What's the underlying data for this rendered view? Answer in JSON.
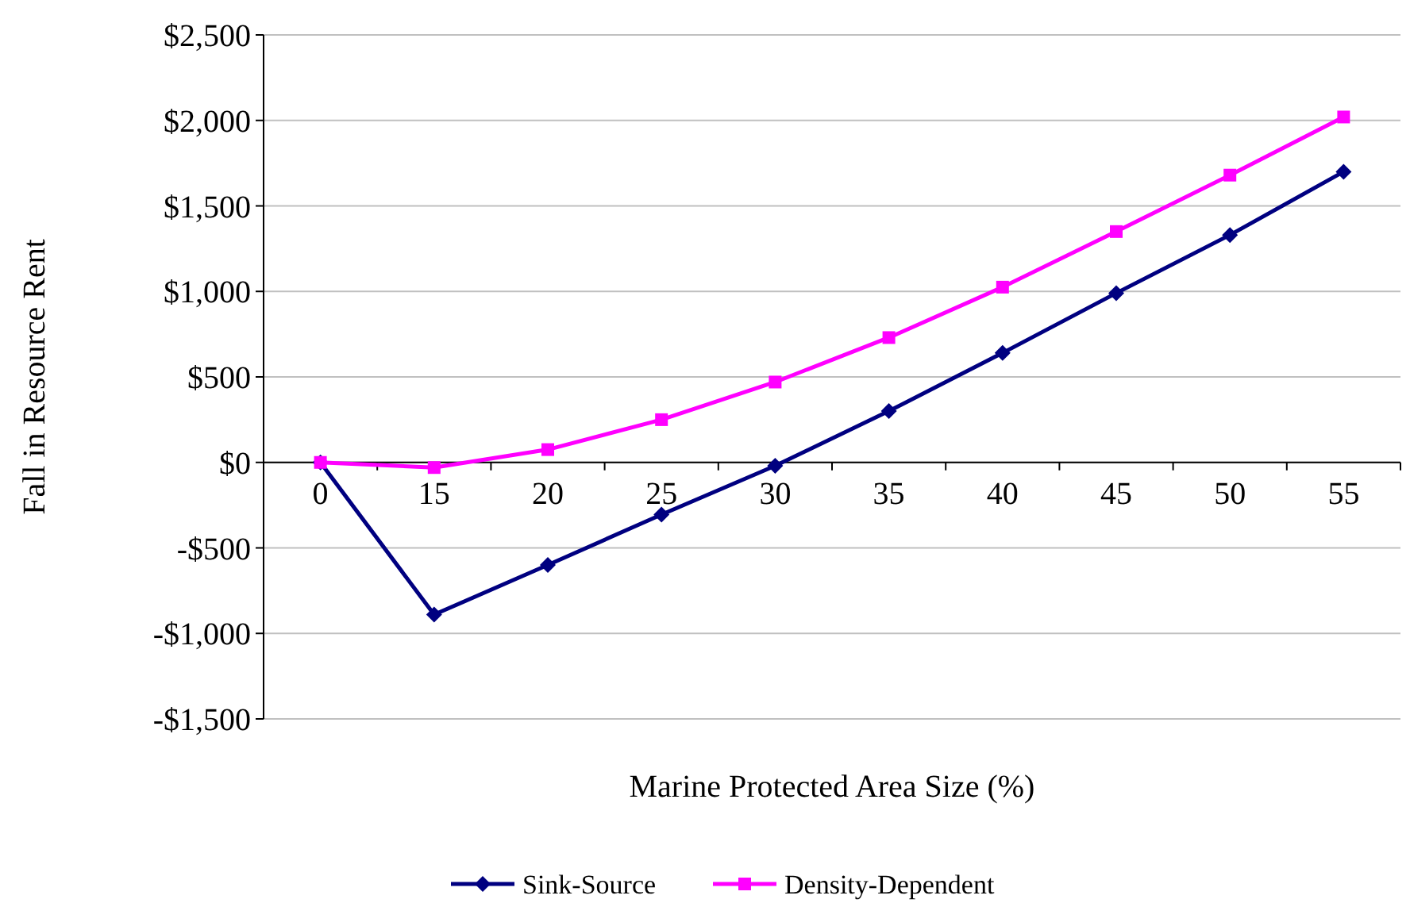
{
  "chart_data": {
    "type": "line",
    "xlabel": "Marine Protected Area Size (%)",
    "ylabel": "Fall in Resource Rent",
    "categories": [
      "0",
      "15",
      "20",
      "25",
      "30",
      "35",
      "40",
      "45",
      "50",
      "55"
    ],
    "series": [
      {
        "name": "Sink-Source",
        "color": "#000080",
        "marker": "diamond",
        "values": [
          0,
          -890,
          -600,
          -305,
          -20,
          300,
          640,
          990,
          1330,
          1700
        ]
      },
      {
        "name": "Density-Dependent",
        "color": "#ff00ff",
        "marker": "square",
        "values": [
          0,
          -30,
          75,
          250,
          470,
          730,
          1025,
          1350,
          1680,
          2020
        ]
      }
    ],
    "ylim": [
      -1500,
      2500
    ],
    "yticks": [
      {
        "value": -1500,
        "label": "-$1,500"
      },
      {
        "value": -1000,
        "label": "-$1,000"
      },
      {
        "value": -500,
        "label": "-$500"
      },
      {
        "value": 0,
        "label": "$0"
      },
      {
        "value": 500,
        "label": "$500"
      },
      {
        "value": 1000,
        "label": "$1,000"
      },
      {
        "value": 1500,
        "label": "$1,500"
      },
      {
        "value": 2000,
        "label": "$2,000"
      },
      {
        "value": 2500,
        "label": "$2,500"
      }
    ],
    "grid": "y",
    "legend": "bottom"
  }
}
